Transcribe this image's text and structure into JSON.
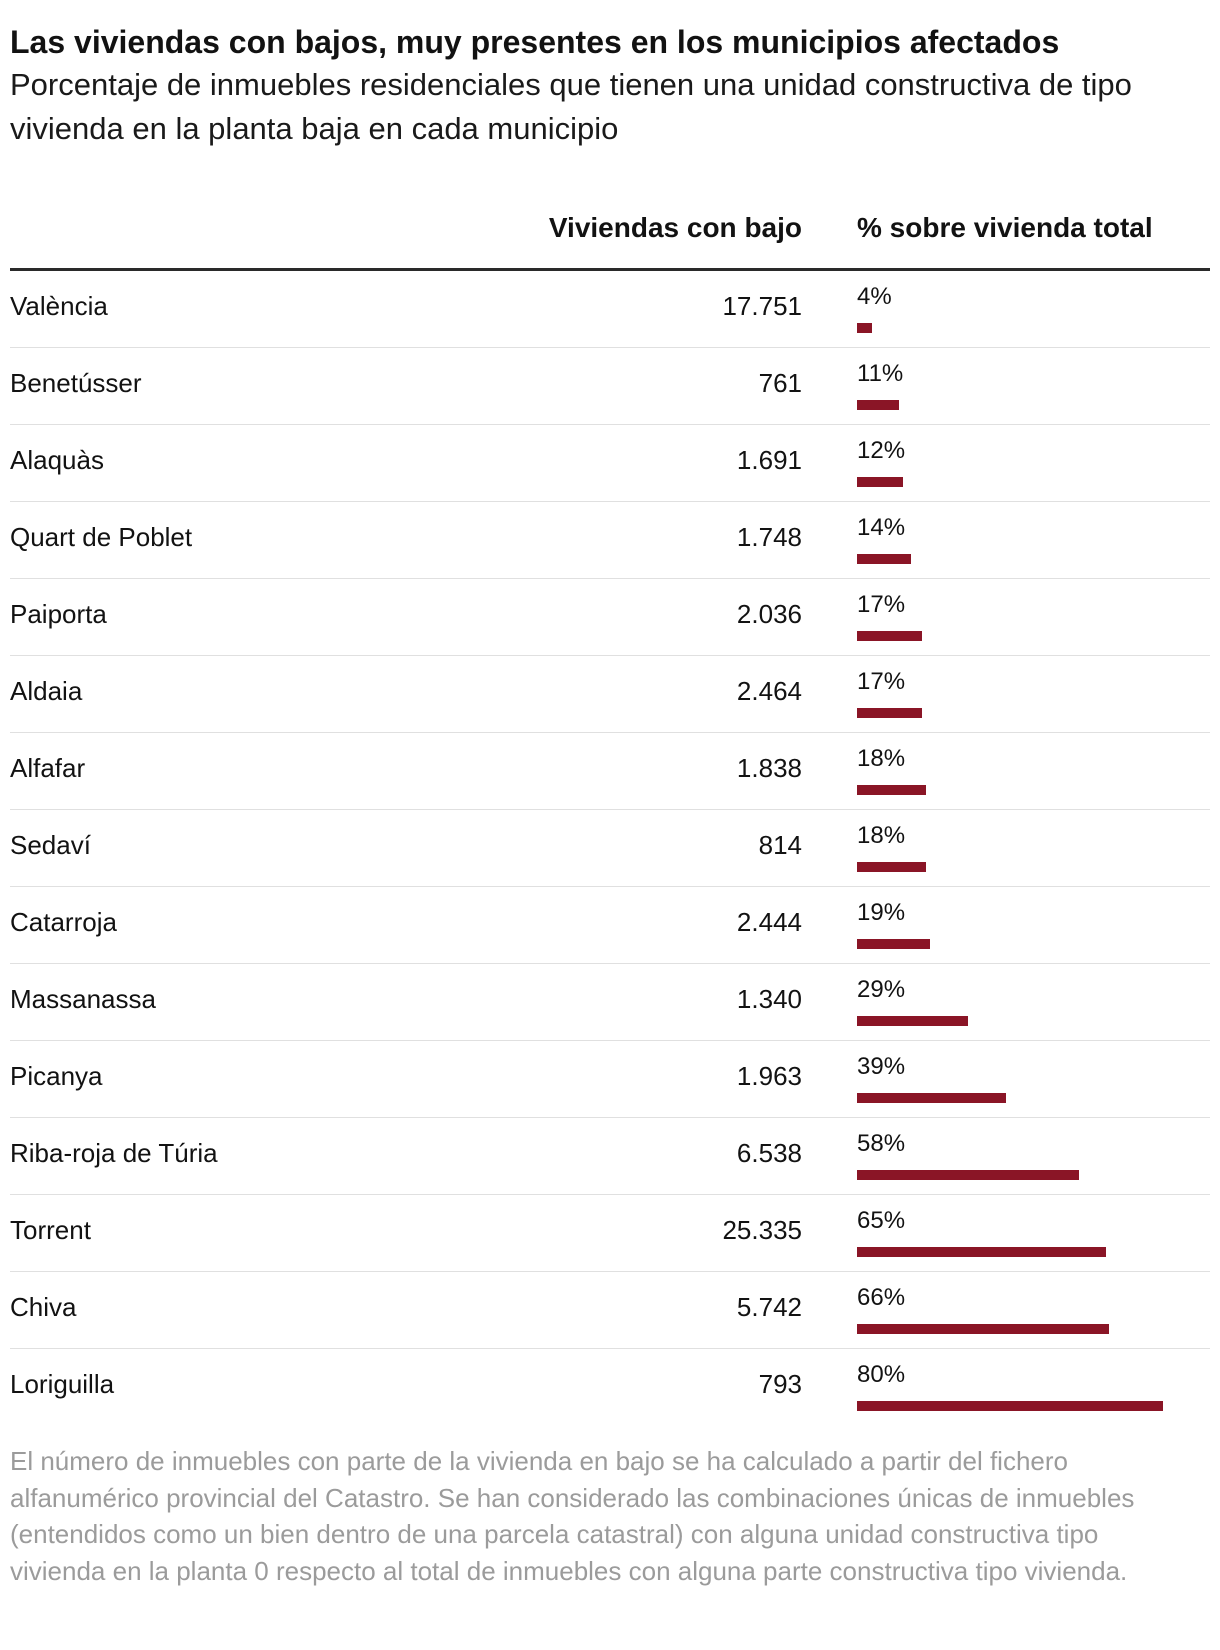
{
  "header": {
    "title": "Las viviendas con bajos, muy presentes en los municipios afectados",
    "subtitle": "Porcentaje de inmuebles residenciales que tienen una unidad constructiva de tipo vivienda en la planta baja en cada municipio"
  },
  "table": {
    "col_count": "Viviendas con bajo",
    "col_pct": "% sobre vivienda total"
  },
  "colors": {
    "bar": "#8a1526"
  },
  "chart_data": {
    "type": "bar",
    "orientation": "horizontal",
    "title": "Las viviendas con bajos, muy presentes en los municipios afectados",
    "subtitle": "Porcentaje de inmuebles residenciales que tienen una unidad constructiva de tipo vivienda en la planta baja en cada municipio",
    "columns": [
      "Viviendas con bajo",
      "% sobre vivienda total"
    ],
    "xlim": [
      0,
      80
    ],
    "rows": [
      {
        "name": "València",
        "count": "17.751",
        "pct": 4,
        "pct_label": "4%"
      },
      {
        "name": "Benetússer",
        "count": "761",
        "pct": 11,
        "pct_label": "11%"
      },
      {
        "name": "Alaquàs",
        "count": "1.691",
        "pct": 12,
        "pct_label": "12%"
      },
      {
        "name": "Quart de Poblet",
        "count": "1.748",
        "pct": 14,
        "pct_label": "14%"
      },
      {
        "name": "Paiporta",
        "count": "2.036",
        "pct": 17,
        "pct_label": "17%"
      },
      {
        "name": "Aldaia",
        "count": "2.464",
        "pct": 17,
        "pct_label": "17%"
      },
      {
        "name": "Alfafar",
        "count": "1.838",
        "pct": 18,
        "pct_label": "18%"
      },
      {
        "name": "Sedaví",
        "count": "814",
        "pct": 18,
        "pct_label": "18%"
      },
      {
        "name": "Catarroja",
        "count": "2.444",
        "pct": 19,
        "pct_label": "19%"
      },
      {
        "name": "Massanassa",
        "count": "1.340",
        "pct": 29,
        "pct_label": "29%"
      },
      {
        "name": "Picanya",
        "count": "1.963",
        "pct": 39,
        "pct_label": "39%"
      },
      {
        "name": "Riba-roja de Túria",
        "count": "6.538",
        "pct": 58,
        "pct_label": "58%"
      },
      {
        "name": "Torrent",
        "count": "25.335",
        "pct": 65,
        "pct_label": "65%"
      },
      {
        "name": "Chiva",
        "count": "5.742",
        "pct": 66,
        "pct_label": "66%"
      },
      {
        "name": "Loriguilla",
        "count": "793",
        "pct": 80,
        "pct_label": "80%"
      }
    ]
  },
  "footer": {
    "note": "El número de inmuebles con parte de la vivienda en bajo se ha calculado a partir del fichero alfanumérico provincial del Catastro. Se han considerado las combinaciones únicas de inmuebles (entendidos como un bien dentro de una parcela catastral) con alguna unidad constructiva tipo vivienda en la planta 0 respecto al total de inmuebles con alguna parte constructiva tipo vivienda."
  }
}
